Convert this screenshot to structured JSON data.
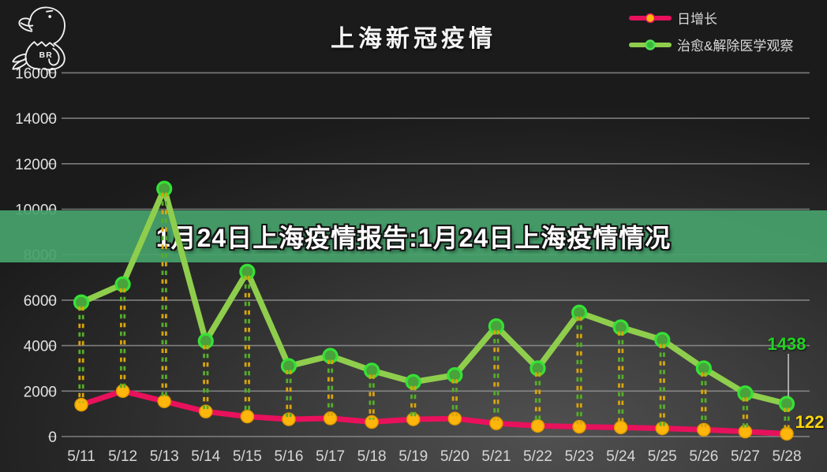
{
  "title": "上海新冠疫情",
  "logo": {
    "letters": "BR"
  },
  "banner": {
    "text": "1月24日上海疫情报告:1月24日上海疫情情况",
    "bg": "#47a16a"
  },
  "legend": [
    {
      "label": "日增长",
      "line_color": "#e8115c",
      "dot_fill": "#ffb60c",
      "dot_stroke": "#e8115c"
    },
    {
      "label": "治愈&解除医学观察",
      "line_color": "#8fce4d",
      "dot_fill": "#3cb93c",
      "dot_stroke": "#52e052"
    }
  ],
  "annotations": {
    "green_end": "1438",
    "red_end": "122"
  },
  "colors": {
    "grid": "#9c9c9c",
    "axis_text": "#d9d9d9",
    "banner_green": "#47a16a",
    "drop_dash_orange": "#d7a50c",
    "drop_dash_green": "#55ad2a",
    "leader_line": "#cccccc",
    "annot_green": "#1fd41f",
    "annot_yellow": "#ffd60a"
  },
  "chart_data": {
    "type": "line",
    "title": "上海新冠疫情",
    "categories": [
      "5/11",
      "5/12",
      "5/13",
      "5/14",
      "5/15",
      "5/16",
      "5/17",
      "5/18",
      "5/19",
      "5/20",
      "5/21",
      "5/22",
      "5/23",
      "5/24",
      "5/25",
      "5/26",
      "5/27",
      "5/28"
    ],
    "series": [
      {
        "name": "日增长",
        "color": "#e8115c",
        "marker_fill": "#ffb60c",
        "marker_stroke": "#df9a00",
        "values": [
          1400,
          2000,
          1550,
          1100,
          880,
          760,
          800,
          640,
          760,
          790,
          580,
          470,
          430,
          400,
          360,
          300,
          220,
          122
        ]
      },
      {
        "name": "治愈&解除医学观察",
        "color": "#8fce4d",
        "marker_fill": "#49a23b",
        "marker_stroke": "#35e235",
        "values": [
          5900,
          6700,
          10900,
          4200,
          7250,
          3100,
          3550,
          2900,
          2400,
          2700,
          4850,
          3000,
          5450,
          4800,
          4250,
          3000,
          1900,
          1438
        ]
      }
    ],
    "ylim": [
      0,
      16000
    ],
    "yticks": [
      0,
      2000,
      4000,
      6000,
      8000,
      10000,
      12000,
      14000,
      16000
    ],
    "grid": true,
    "legend_position": "top-right",
    "end_labels": {
      "治愈&解除医学观察": 1438,
      "日增长": 122
    }
  }
}
